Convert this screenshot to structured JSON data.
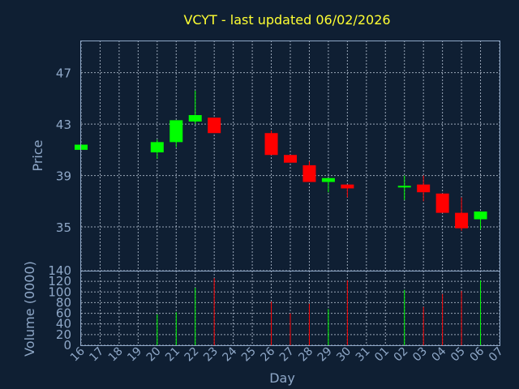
{
  "chart_data": [
    {
      "type": "candlestick",
      "title": "VCYT - last updated 06/02/2026",
      "xlabel": "",
      "ylabel": "Price",
      "ylim": [
        31.6,
        49.5
      ],
      "yticks": [
        35,
        39,
        43,
        47
      ],
      "grid": true,
      "colors": {
        "up": "#00ff00",
        "down": "#ff0000"
      },
      "categories": [
        "16",
        "17",
        "18",
        "19",
        "20",
        "21",
        "22",
        "23",
        "24",
        "25",
        "26",
        "27",
        "28",
        "29",
        "30",
        "31",
        "01",
        "02",
        "03",
        "04",
        "05",
        "06",
        "07"
      ],
      "candles": [
        {
          "x": "16",
          "open": 41.0,
          "close": 41.4,
          "high": 41.4,
          "low": 41.0
        },
        {
          "x": "20",
          "open": 40.8,
          "close": 41.6,
          "high": 41.8,
          "low": 40.3
        },
        {
          "x": "21",
          "open": 41.6,
          "close": 43.3,
          "high": 43.3,
          "low": 41.2
        },
        {
          "x": "22",
          "open": 43.2,
          "close": 43.7,
          "high": 45.6,
          "low": 43.0
        },
        {
          "x": "23",
          "open": 43.5,
          "close": 42.3,
          "high": 43.5,
          "low": 42.3
        },
        {
          "x": "26",
          "open": 42.3,
          "close": 40.6,
          "high": 42.5,
          "low": 40.6
        },
        {
          "x": "27",
          "open": 40.6,
          "close": 40.0,
          "high": 40.6,
          "low": 40.0
        },
        {
          "x": "28",
          "open": 39.8,
          "close": 38.5,
          "high": 40.1,
          "low": 38.5
        },
        {
          "x": "29",
          "open": 38.5,
          "close": 38.8,
          "high": 38.8,
          "low": 37.7
        },
        {
          "x": "30",
          "open": 38.3,
          "close": 38.0,
          "high": 38.3,
          "low": 37.3
        },
        {
          "x": "02",
          "open": 38.1,
          "close": 38.2,
          "high": 39.0,
          "low": 37.1
        },
        {
          "x": "03",
          "open": 38.3,
          "close": 37.7,
          "high": 39.0,
          "low": 37.0
        },
        {
          "x": "04",
          "open": 37.6,
          "close": 36.1,
          "high": 37.6,
          "low": 36.1
        },
        {
          "x": "05",
          "open": 36.1,
          "close": 34.9,
          "high": 37.3,
          "low": 34.7
        },
        {
          "x": "06",
          "open": 35.6,
          "close": 36.2,
          "high": 36.2,
          "low": 34.8
        }
      ]
    },
    {
      "type": "bar",
      "xlabel": "Day",
      "ylabel": "Volume (0000)",
      "ylim": [
        0,
        140
      ],
      "yticks": [
        0,
        20,
        40,
        60,
        80,
        100,
        120,
        140
      ],
      "grid": true,
      "categories": [
        "16",
        "17",
        "18",
        "19",
        "20",
        "21",
        "22",
        "23",
        "24",
        "25",
        "26",
        "27",
        "28",
        "29",
        "30",
        "31",
        "01",
        "02",
        "03",
        "04",
        "05",
        "06",
        "07"
      ],
      "bars": [
        {
          "x": "20",
          "value": 58,
          "direction": "up"
        },
        {
          "x": "21",
          "value": 62,
          "direction": "up"
        },
        {
          "x": "22",
          "value": 108,
          "direction": "up"
        },
        {
          "x": "23",
          "value": 126,
          "direction": "down"
        },
        {
          "x": "26",
          "value": 82,
          "direction": "down"
        },
        {
          "x": "27",
          "value": 60,
          "direction": "down"
        },
        {
          "x": "28",
          "value": 78,
          "direction": "down"
        },
        {
          "x": "29",
          "value": 68,
          "direction": "up"
        },
        {
          "x": "30",
          "value": 122,
          "direction": "down"
        },
        {
          "x": "02",
          "value": 104,
          "direction": "up"
        },
        {
          "x": "03",
          "value": 72,
          "direction": "down"
        },
        {
          "x": "04",
          "value": 96,
          "direction": "down"
        },
        {
          "x": "05",
          "value": 102,
          "direction": "down"
        },
        {
          "x": "06",
          "value": 122,
          "direction": "up"
        }
      ]
    }
  ]
}
